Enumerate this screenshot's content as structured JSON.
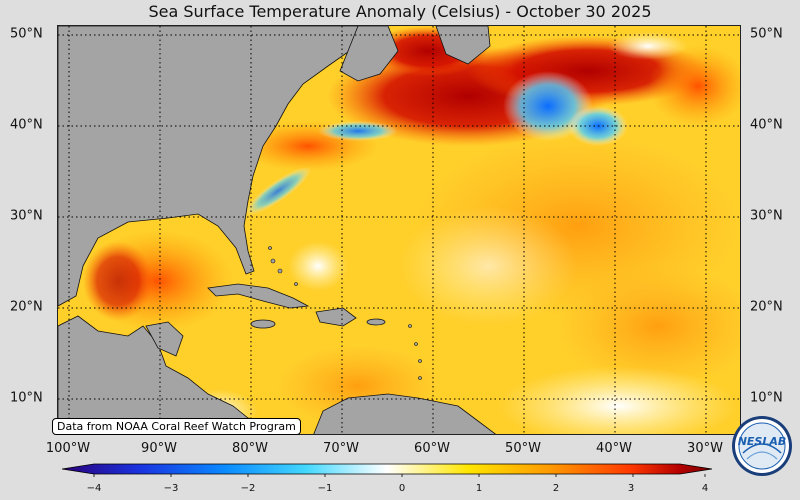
{
  "title": "Sea Surface Temperature Anomaly (Celsius) - October 30 2025",
  "credit": "Data from NOAA Coral Reef Watch Program",
  "logo_text": "NESLAB",
  "lat_labels": [
    "50°N",
    "40°N",
    "30°N",
    "20°N",
    "10°N"
  ],
  "lon_labels": [
    "100°W",
    "90°W",
    "80°W",
    "70°W",
    "60°W",
    "50°W",
    "40°W",
    "30°W"
  ],
  "colorbar": {
    "ticks": [
      "−4",
      "−3",
      "−2",
      "−1",
      "0",
      "1",
      "2",
      "3",
      "4"
    ],
    "min": -4,
    "max": 4,
    "stops": [
      "#2a007a",
      "#1a33e0",
      "#0a8aff",
      "#44d8ff",
      "#ffffff",
      "#ffe600",
      "#ff9a00",
      "#ff3800",
      "#b40000",
      "#7a0000"
    ]
  },
  "colors": {
    "land": "#a4a4a4",
    "ocean_base": "#ffcf2a",
    "warm_anomaly": "#c40000",
    "cool_anomaly": "#0a6cff"
  }
}
